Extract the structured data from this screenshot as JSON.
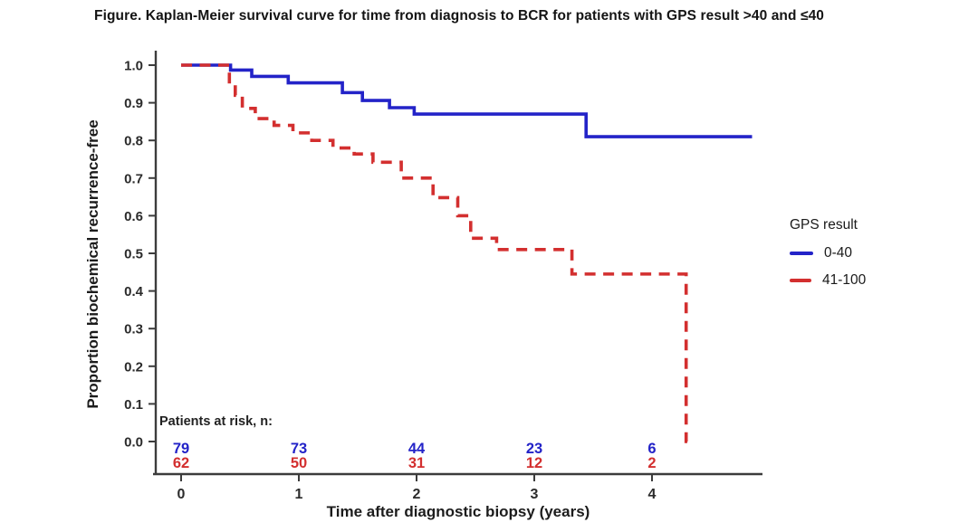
{
  "title": "Figure. Kaplan-Meier survival curve for time from diagnosis to BCR for patients with GPS result >40 and ≤40",
  "chart_data": {
    "type": "line",
    "subtype": "kaplan_meier_step",
    "title": "Figure. Kaplan-Meier survival curve for time from diagnosis to BCR for patients with GPS result >40 and ≤40",
    "xlabel": "Time after diagnostic biopsy (years)",
    "ylabel": "Proportion biochemical recurrence-free",
    "xlim": [
      0,
      4.95
    ],
    "ylim": [
      0,
      1.0
    ],
    "x_ticks": [
      0,
      1,
      2,
      3,
      4
    ],
    "y_ticks": [
      0.0,
      0.1,
      0.2,
      0.3,
      0.4,
      0.5,
      0.6,
      0.7,
      0.8,
      0.9,
      1.0
    ],
    "grid": false,
    "axis_color": "#3c3c3c",
    "tick_label_color": "#2b2b2b",
    "legend": {
      "title": "GPS result",
      "position": "right",
      "entries": [
        {
          "label": "0-40",
          "color": "#2323c8",
          "linestyle": "solid"
        },
        {
          "label": "41-100",
          "color": "#d32f2f",
          "linestyle": "dashed"
        }
      ]
    },
    "series": [
      {
        "name": "0-40",
        "color": "#2323c8",
        "linestyle": "solid",
        "end_time": 4.85,
        "steps": [
          [
            0,
            1.0
          ],
          [
            0.42,
            0.987
          ],
          [
            0.6,
            0.97
          ],
          [
            0.91,
            0.953
          ],
          [
            1.37,
            0.927
          ],
          [
            1.54,
            0.906
          ],
          [
            1.77,
            0.887
          ],
          [
            1.98,
            0.87
          ],
          [
            3.44,
            0.81
          ]
        ]
      },
      {
        "name": "41-100",
        "color": "#d32f2f",
        "linestyle": "dashed",
        "end_time": 4.3,
        "steps": [
          [
            0,
            1.0
          ],
          [
            0.41,
            0.95
          ],
          [
            0.46,
            0.92
          ],
          [
            0.52,
            0.885
          ],
          [
            0.63,
            0.858
          ],
          [
            0.79,
            0.84
          ],
          [
            0.95,
            0.82
          ],
          [
            1.11,
            0.8
          ],
          [
            1.29,
            0.78
          ],
          [
            1.47,
            0.764
          ],
          [
            1.63,
            0.742
          ],
          [
            1.87,
            0.7
          ],
          [
            2.14,
            0.648
          ],
          [
            2.35,
            0.6
          ],
          [
            2.46,
            0.54
          ],
          [
            2.68,
            0.51
          ],
          [
            3.32,
            0.445
          ],
          [
            4.29,
            0.0
          ]
        ]
      }
    ],
    "risk_table": {
      "label": "Patients at risk, n:",
      "times": [
        0,
        1,
        2,
        3,
        4
      ],
      "rows": [
        {
          "group": "0-40",
          "color": "#2323c8",
          "counts": [
            79,
            73,
            44,
            23,
            6
          ]
        },
        {
          "group": "41-100",
          "color": "#d32f2f",
          "counts": [
            62,
            50,
            31,
            12,
            2
          ]
        }
      ]
    }
  }
}
